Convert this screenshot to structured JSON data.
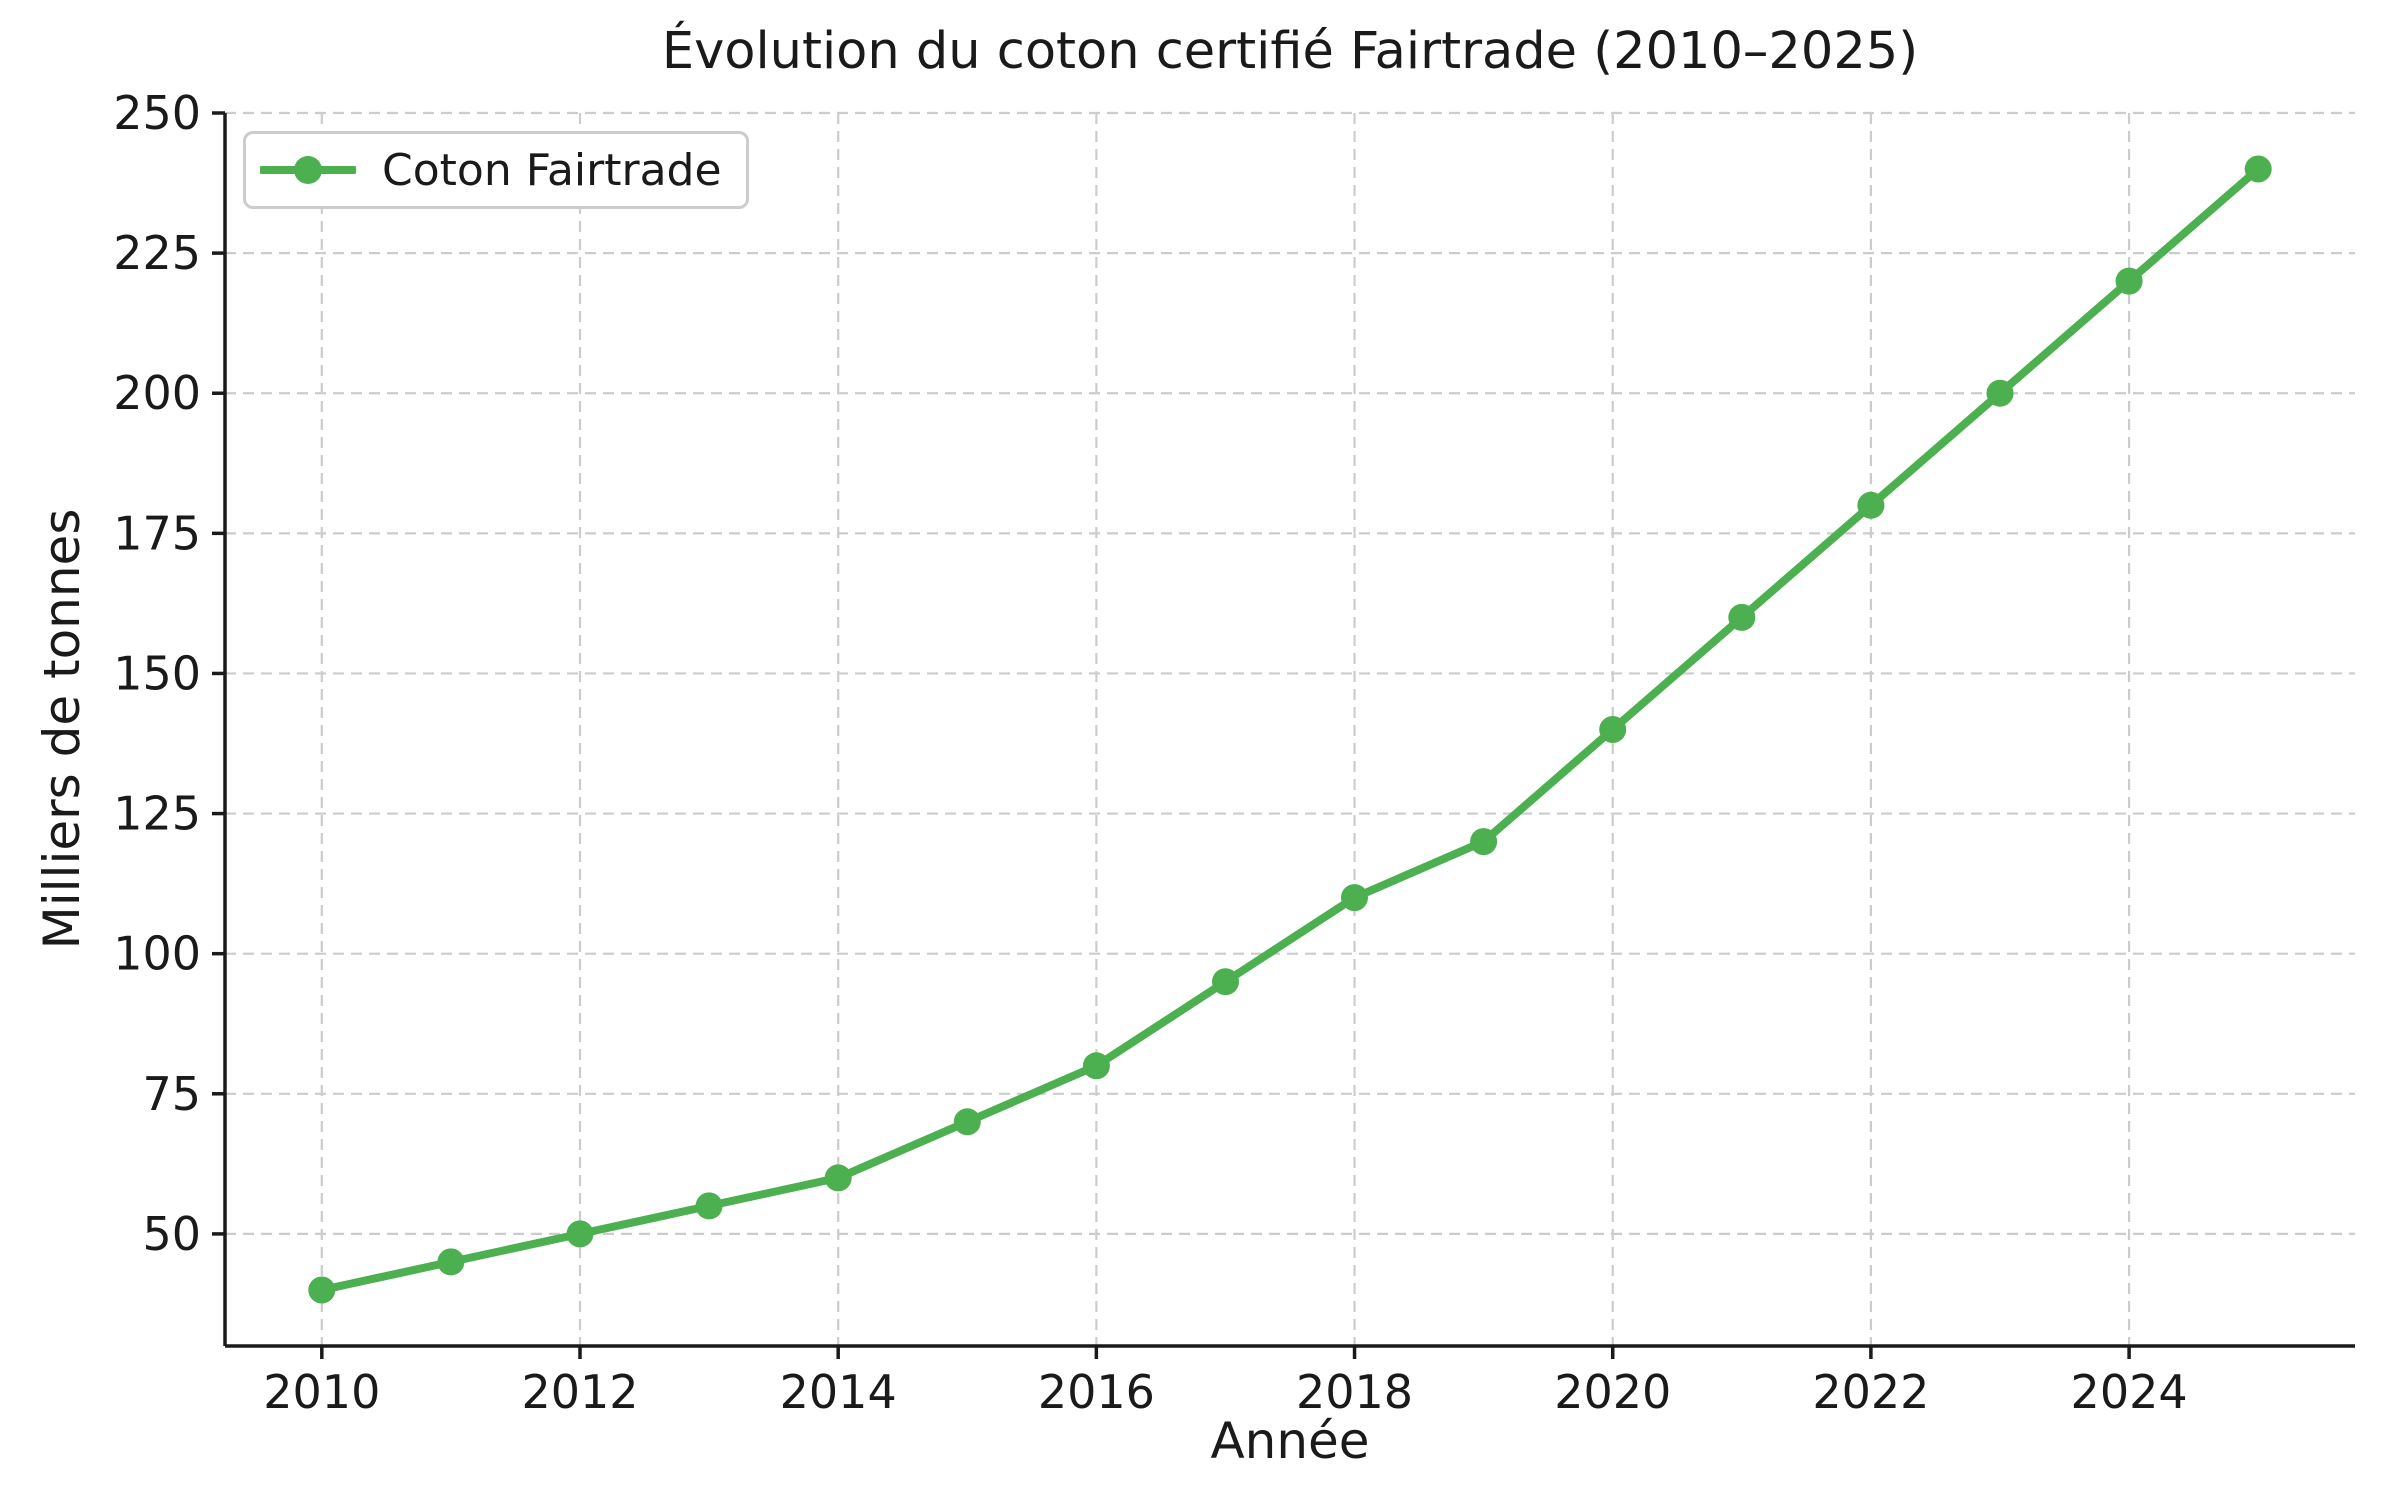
{
  "colors": {
    "series_green": "#4caf50",
    "grid": "#cccccc",
    "text": "#1a1a1a",
    "spine": "#1a1a1a",
    "legend_border": "#cccccc",
    "background": "#ffffff"
  },
  "chart_data": {
    "type": "line",
    "title": "Évolution du coton certifié Fairtrade (2010–2025)",
    "xlabel": "Année",
    "ylabel": "Milliers de tonnes",
    "x": [
      2010,
      2011,
      2012,
      2013,
      2014,
      2015,
      2016,
      2017,
      2018,
      2019,
      2020,
      2021,
      2022,
      2023,
      2024,
      2025
    ],
    "series": [
      {
        "name": "Coton Fairtrade",
        "color": "#4caf50",
        "values": [
          40,
          45,
          50,
          55,
          60,
          70,
          80,
          95,
          110,
          120,
          140,
          160,
          180,
          200,
          220,
          240
        ]
      }
    ],
    "xlim": [
      2009.25,
      2025.75
    ],
    "ylim": [
      30,
      250
    ],
    "xticks": [
      2010,
      2012,
      2014,
      2016,
      2018,
      2020,
      2022,
      2024
    ],
    "yticks": [
      50,
      75,
      100,
      125,
      150,
      175,
      200,
      225,
      250
    ],
    "grid": true,
    "grid_style": "dashed",
    "legend_position": "upper left",
    "marker": "circle"
  }
}
